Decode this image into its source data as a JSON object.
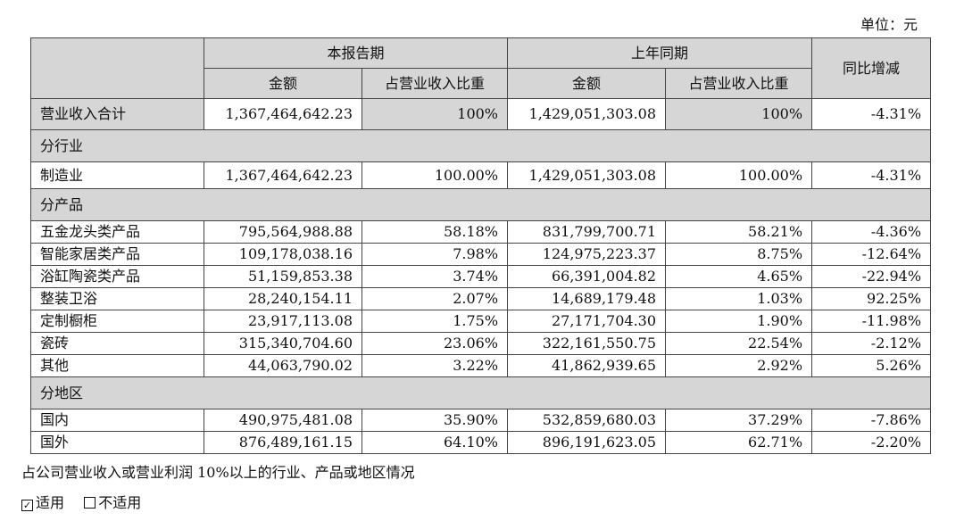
{
  "unit_label": "单位：元",
  "header": {
    "current_period": "本报告期",
    "prior_period": "上年同期",
    "yoy": "同比增减",
    "amount": "金额",
    "share": "占营业收入比重"
  },
  "total": {
    "label": "营业收入合计",
    "cur_amount": "1,367,464,642.23",
    "cur_share": "100%",
    "prev_amount": "1,429,051,303.08",
    "prev_share": "100%",
    "yoy": "-4.31%"
  },
  "sections": [
    {
      "title": "分行业",
      "rows": [
        {
          "label": "制造业",
          "cur_amount": "1,367,464,642.23",
          "cur_share": "100.00%",
          "prev_amount": "1,429,051,303.08",
          "prev_share": "100.00%",
          "yoy": "-4.31%"
        }
      ]
    },
    {
      "title": "分产品",
      "rows": [
        {
          "label": "五金龙头类产品",
          "cur_amount": "795,564,988.88",
          "cur_share": "58.18%",
          "prev_amount": "831,799,700.71",
          "prev_share": "58.21%",
          "yoy": "-4.36%"
        },
        {
          "label": "智能家居类产品",
          "cur_amount": "109,178,038.16",
          "cur_share": "7.98%",
          "prev_amount": "124,975,223.37",
          "prev_share": "8.75%",
          "yoy": "-12.64%"
        },
        {
          "label": "浴缸陶瓷类产品",
          "cur_amount": "51,159,853.38",
          "cur_share": "3.74%",
          "prev_amount": "66,391,004.82",
          "prev_share": "4.65%",
          "yoy": "-22.94%"
        },
        {
          "label": "整装卫浴",
          "cur_amount": "28,240,154.11",
          "cur_share": "2.07%",
          "prev_amount": "14,689,179.48",
          "prev_share": "1.03%",
          "yoy": "92.25%"
        },
        {
          "label": "定制橱柜",
          "cur_amount": "23,917,113.08",
          "cur_share": "1.75%",
          "prev_amount": "27,171,704.30",
          "prev_share": "1.90%",
          "yoy": "-11.98%"
        },
        {
          "label": "瓷砖",
          "cur_amount": "315,340,704.60",
          "cur_share": "23.06%",
          "prev_amount": "322,161,550.75",
          "prev_share": "22.54%",
          "yoy": "-2.12%"
        },
        {
          "label": "其他",
          "cur_amount": "44,063,790.02",
          "cur_share": "3.22%",
          "prev_amount": "41,862,939.65",
          "prev_share": "2.92%",
          "yoy": "5.26%"
        }
      ]
    },
    {
      "title": "分地区",
      "rows": [
        {
          "label": "国内",
          "cur_amount": "490,975,481.08",
          "cur_share": "35.90%",
          "prev_amount": "532,859,680.03",
          "prev_share": "37.29%",
          "yoy": "-7.86%"
        },
        {
          "label": "国外",
          "cur_amount": "876,489,161.15",
          "cur_share": "64.10%",
          "prev_amount": "896,191,623.05",
          "prev_share": "62.71%",
          "yoy": "-2.20%"
        }
      ]
    }
  ],
  "note": "占公司营业收入或营业利润 10%以上的行业、产品或地区情况",
  "options": {
    "applicable": "适用",
    "applicable_checked": true,
    "not_applicable": "不适用",
    "not_applicable_checked": false
  }
}
